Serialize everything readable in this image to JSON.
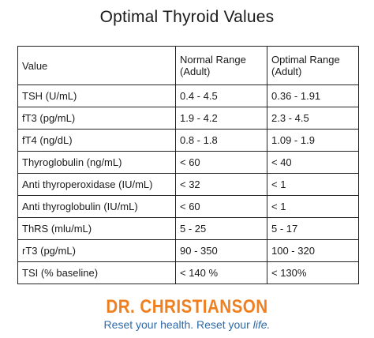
{
  "title": "Optimal Thyroid Values",
  "table": {
    "headers": [
      "Value",
      "Normal Range (Adult)",
      "Optimal Range (Adult)"
    ],
    "rows": [
      [
        "TSH (U/mL)",
        "0.4 - 4.5",
        "0.36 - 1.91"
      ],
      [
        "fT3 (pg/mL)",
        "1.9 - 4.2",
        "2.3 - 4.5"
      ],
      [
        "fT4 (ng/dL)",
        "0.8 - 1.8",
        "1.09 - 1.9"
      ],
      [
        "Thyroglobulin (ng/mL)",
        "< 60",
        "< 40"
      ],
      [
        "Anti thyroperoxidase (IU/mL)",
        "< 32",
        "< 1"
      ],
      [
        "Anti thyroglobulin (IU/mL)",
        "< 60",
        "< 1"
      ],
      [
        "ThRS (mlu/mL)",
        "5 - 25",
        "5 - 17"
      ],
      [
        "rT3 (pg/mL)",
        "90 - 350",
        "100 - 320"
      ],
      [
        "TSI (% baseline)",
        "< 140 %",
        "< 130%"
      ]
    ]
  },
  "logo": {
    "name": "DR. CHRISTIANSON",
    "tagline_main": "Reset your health. Reset your ",
    "tagline_emphasis": "life.",
    "brand_color": "#f07f1f",
    "tagline_color": "#2e6aa8"
  }
}
